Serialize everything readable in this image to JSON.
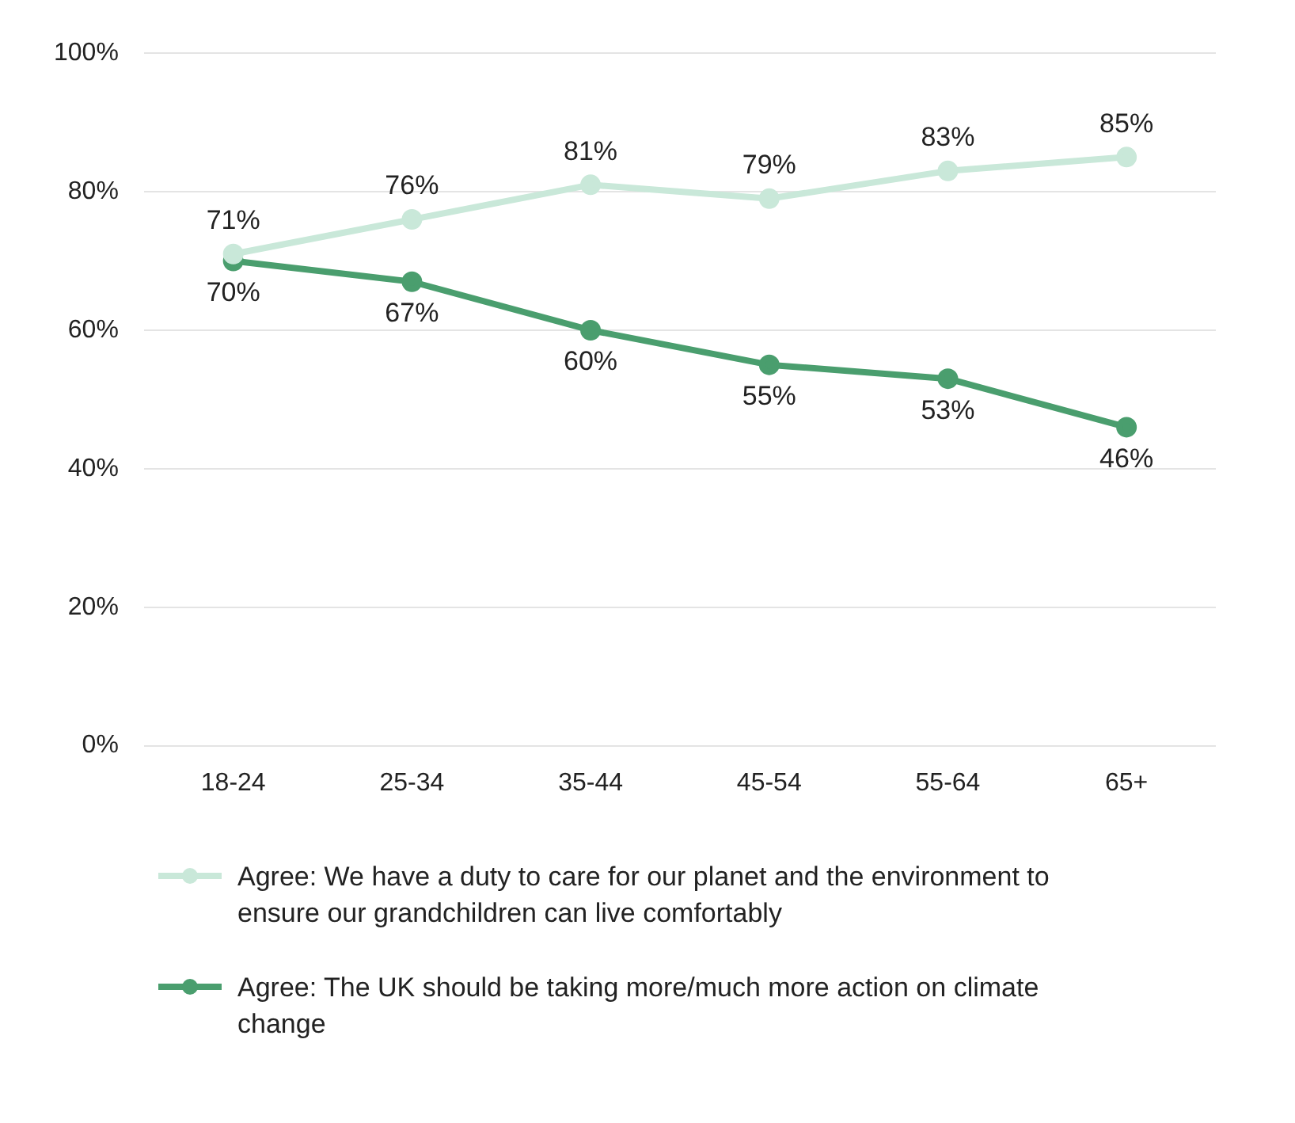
{
  "chart_data": {
    "type": "line",
    "categories": [
      "18-24",
      "25-34",
      "35-44",
      "45-54",
      "55-64",
      "65+"
    ],
    "series": [
      {
        "name": "Agree: We have a duty to care for our planet and the environment to ensure our grandchildren can live comfortably",
        "color": "#c9e8d9",
        "values": [
          71,
          76,
          81,
          79,
          83,
          85
        ],
        "value_labels": [
          "71%",
          "76%",
          "81%",
          "79%",
          "83%",
          "85%"
        ]
      },
      {
        "name": "Agree: The UK should be taking more/much more action on climate change",
        "color": "#4a9e6e",
        "values": [
          70,
          67,
          60,
          55,
          53,
          46
        ],
        "value_labels": [
          "70%",
          "67%",
          "60%",
          "55%",
          "53%",
          "46%"
        ]
      }
    ],
    "ylim": [
      0,
      100
    ],
    "yticks": [
      {
        "value": 0,
        "label": "0%"
      },
      {
        "value": 20,
        "label": "20%"
      },
      {
        "value": 40,
        "label": "40%"
      },
      {
        "value": 60,
        "label": "60%"
      },
      {
        "value": 80,
        "label": "80%"
      },
      {
        "value": 100,
        "label": "100%"
      }
    ],
    "grid": "y",
    "legend": "bottom",
    "marker": "circle",
    "line_style": "solid"
  }
}
